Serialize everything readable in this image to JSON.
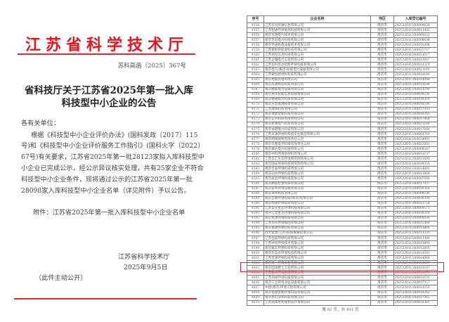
{
  "notice": {
    "issuer_header": "江苏省科学技术厅",
    "doc_number": "苏科高函〔2025〕367号",
    "title_lines": [
      "省科技厅关于江苏省2025年第一批入库",
      "科技型中小企业的公告"
    ],
    "salutation": "各有关单位：",
    "body_lines": [
      "根据《科技型中小企业评价办法》(国科发政〔2017〕115",
      "号)和《科技型中小企业评价服务工作指引》(国科火字〔2022〕",
      "67号)有关要求，江苏省2025年第一批28123家拟入库科技型中",
      "小企业已完成公示，经公示异议核实处理，共有25家企业不符合",
      "科技型中小企业条件，现将通过公示的江苏省2025年第一批",
      "28098家入库科技型中小企业名单（详见附件）予以公告。"
    ],
    "attachment": "附件：江苏省2025年第一批入库科技型中小企业名单",
    "signature": "江苏省科学技术厅",
    "date": "2025年9月5日",
    "disclosure": "（此件主动公开）",
    "accent_color": "#e5161f"
  },
  "table": {
    "headers": [
      "序号",
      "企业名称",
      "地区",
      "入库登记编号"
    ],
    "highlighted_row": "4603",
    "highlight_color": "#d4202f",
    "rows": [
      [
        "4554",
        "江苏华创欣康信息有限公司",
        "南京市",
        "2025320113A0006639"
      ],
      [
        "4555",
        "江苏智通环保能源科技有限公司",
        "南京市",
        "2025320113A0013405"
      ],
      [
        "4556",
        "南京华瑞电气技术有限公司",
        "南京市",
        "2025320113A0009232"
      ],
      [
        "4557",
        "南京吉昌电力科技有限公司",
        "南京市",
        "2025320113A0008638"
      ],
      [
        "4558",
        "南京宇通机电设备技术有限公司",
        "南京市",
        "2025320113A0016498"
      ],
      [
        "4559",
        "江苏德智新能源科技有限公司",
        "南京市",
        "2025320113A0025717"
      ],
      [
        "4560",
        "江苏尚恒信息科技有限公司",
        "南京市",
        "2025320113A0014017"
      ],
      [
        "4561",
        "江苏正耀电力工程有限公司",
        "南京市",
        "2025320113A0013847"
      ],
      [
        "4562",
        "江苏恒科思达智能环保科技有限公司",
        "南京市",
        "2025320113A0014319"
      ],
      [
        "4563",
        "南京电气(集团)智能电力设备有限公司",
        "南京市",
        "2025320113A0021169"
      ],
      [
        "4564",
        "江苏紫恒新材料科技有限公司",
        "南京市",
        "2025320113A0014106"
      ],
      [
        "4565",
        "南京旭辰光电有限公司",
        "南京市",
        "2025320113A0014068"
      ],
      [
        "4566",
        "南京先进制造科技有限公司",
        "南京市",
        "2025320113A0014108"
      ],
      [
        "4567",
        "南京鹏泰电力设备有限公司",
        "南京市",
        "2025320113A0014299"
      ],
      [
        "4568",
        "南京英华智能信息科技有限公司",
        "南京市",
        "2025320113A0018336"
      ],
      [
        "4569",
        "南京德通电力科技有限公司",
        "南京市",
        "2025320113A0018316"
      ],
      [
        "4570",
        "南京天宏能源技术有限公司",
        "南京市",
        "2025320113A0018506"
      ],
      [
        "4571",
        "江苏建辉科技有限公司",
        "南京市",
        "2025320113A0017933"
      ],
      [
        "4572",
        "南京瑞鼎智能科技有限公司",
        "南京市",
        "2025320113A0018365"
      ],
      [
        "4573",
        "南京正兴科技有限责任公司",
        "南京市",
        "2025320113A0017964"
      ],
      [
        "4574",
        "南京新源电气科技有限公司",
        "南京市",
        "2025320113A0021168"
      ],
      [
        "4575",
        "南京卓越电力科技有限公司",
        "南京市",
        "2025320113A0017666"
      ],
      [
        "4576",
        "江苏天源新材料科技实业集团有限公司",
        "南京市",
        "2025320113A0004769"
      ],
      [
        "4577",
        "南京明辉建材有限责任公司",
        "南京市",
        "2025320113A0024991"
      ],
      [
        "4578",
        "南京华鑫电子科技有限责任公司",
        "南京市",
        "2025320113A0025602"
      ],
      [
        "4579",
        "南京康达电力科技有限公司",
        "南京市",
        "2025320113A0008587"
      ],
      [
        "4580",
        "南京中科环保新材料有限公司",
        "南京市",
        "2025320113A0014197"
      ],
      [
        "4581",
        "江苏华汇生态环境研究院有限公司",
        "南京市",
        "2025320113A0013609"
      ],
      [
        "4582",
        "南京国光环保科技研究院有限公司",
        "南京市",
        "2025320113A0018356"
      ],
      [
        "4583",
        "南京云泰环境科技有限公司",
        "南京市",
        "2025320113A0014002"
      ],
      [
        "4584",
        "南京山水环保科技有限公司",
        "南京市",
        "2025320113A0013868"
      ],
      [
        "4585",
        "南京威远环境科技有限公司",
        "南京市",
        "2025320113A0007998"
      ],
      [
        "4586",
        "南京鹏程智慧科技有限公司",
        "南京市",
        "2025320113A0017937"
      ],
      [
        "4587",
        "南京安禾环境设备有限公司",
        "南京市",
        "2025320113A0018364"
      ],
      [
        "4588",
        "南京清水科技有限公司",
        "南京市",
        "2025320113A0008596"
      ],
      [
        "4589",
        "南京正德环境科技(南京)有限公司",
        "南京市",
        "2025320113A0018390"
      ],
      [
        "4590",
        "南京绿源环保科技有限公司",
        "南京市",
        "2025320113A0013758"
      ],
      [
        "4591",
        "江苏蓝天生态环境科技有限公司",
        "南京市",
        "2025320113A0009571"
      ],
      [
        "4592",
        "南京江北生态环境科技有限公司",
        "南京市",
        "2025320113A0018318"
      ],
      [
        "4593",
        "南京龙源环境科技有限公司",
        "南京市",
        "2025320113A0009936"
      ],
      [
        "4594",
        "江苏润东环境集团有限公司",
        "南京市",
        "2025320113A0025464"
      ],
      [
        "4595",
        "南京嘉源环保科技有限公司",
        "南京市",
        "2025320113A0013808"
      ],
      [
        "4596",
        "苏大智慧(江苏)科技发展有限公司",
        "南京市",
        "2025320113A0013339"
      ],
      [
        "4597",
        "江苏恒安环保科技有限公司",
        "南京市",
        "2025320113A0013408"
      ],
      [
        "4598",
        "江苏中创环保技术有限公司",
        "南京市",
        "2025320113A0013809"
      ],
      [
        "4599",
        "南京紫云环保科技有限公司",
        "南京市",
        "2025320113A0013866"
      ],
      [
        "4600",
        "南京华蓝水环境科技有限公司",
        "南京市",
        "2025320113A0014593"
      ],
      [
        "4601",
        "江苏宏源环保科技有限公司",
        "南京市",
        "2025320113A0014004"
      ],
      [
        "4602",
        "南京清一环境工程有限公司",
        "南京市",
        "2025320113A0014009"
      ],
      [
        "4603",
        "南京国润岩土工程有限公司",
        "南京市",
        "2025320113A0014187"
      ],
      [
        "4604",
        "江苏嘉华环境科技有限公司",
        "南京市",
        "2025320113A0014170"
      ],
      [
        "4605",
        "江苏润祥环境科技有限公司",
        "南京市",
        "2025320113A0014193"
      ],
      [
        "4606",
        "南京三立环境净化设备有限公司",
        "南京市",
        "2025320113A0017957"
      ],
      [
        "4607",
        "中建(南京)环境工程有限公司",
        "南京市",
        "2025320113A0014256"
      ],
      [
        "4608",
        "南京恒德智能环境科技有限公司",
        "南京市",
        "2025320113A0014262"
      ],
      [
        "4609",
        "南京水衍净水科技有限公司",
        "南京市",
        "2025320113A0017905"
      ],
      [
        "4610",
        "江苏润泽水利规划设计有限公司",
        "南京市",
        "2025320113A0014381"
      ]
    ],
    "pager": "第 81 页，共 491 页"
  }
}
